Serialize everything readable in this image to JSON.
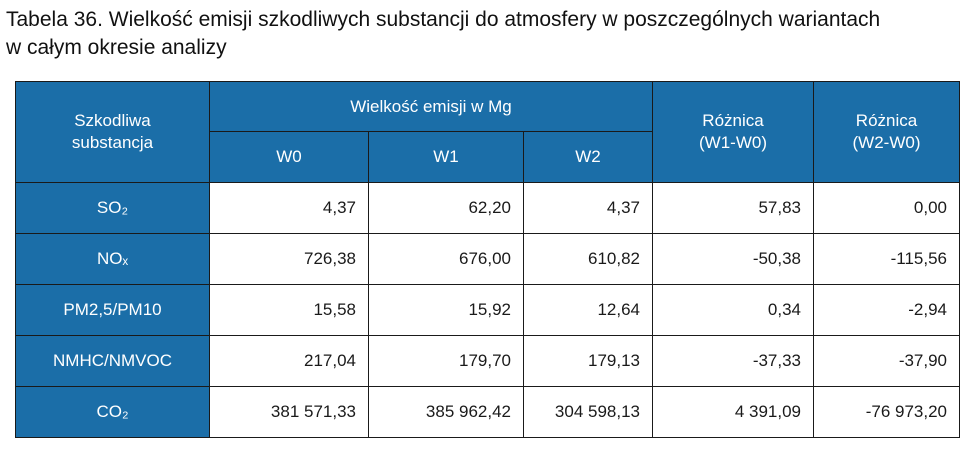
{
  "caption": {
    "line1": "Tabela 36. Wielkość emisji szkodliwych substancji do atmosfery w poszczególnych wariantach",
    "line2": "w całym okresie analizy"
  },
  "table": {
    "header": {
      "substance_line1": "Szkodliwa",
      "substance_line2": "substancja",
      "emission_group": "Wielkość emisji w Mg",
      "w0": "W0",
      "w1": "W1",
      "w2": "W2",
      "diff1_line1": "Różnica",
      "diff1_line2": "(W1-W0)",
      "diff2_line1": "Różnica",
      "diff2_line2": "(W2-W0)"
    },
    "rows": [
      {
        "substance": "SO₂",
        "w0": "4,37",
        "w1": "62,20",
        "w2": "4,37",
        "diff1": "57,83",
        "diff2": "0,00"
      },
      {
        "substance": "NOₓ",
        "w0": "726,38",
        "w1": "676,00",
        "w2": "610,82",
        "diff1": "-50,38",
        "diff2": "-115,56"
      },
      {
        "substance": "PM2,5/PM10",
        "w0": "15,58",
        "w1": "15,92",
        "w2": "12,64",
        "diff1": "0,34",
        "diff2": "-2,94"
      },
      {
        "substance": "NMHC/NMVOC",
        "w0": "217,04",
        "w1": "179,70",
        "w2": "179,13",
        "diff1": "-37,33",
        "diff2": "-37,90"
      },
      {
        "substance": "CO₂",
        "w0": "381 571,33",
        "w1": "385 962,42",
        "w2": "304 598,13",
        "diff1": "4 391,09",
        "diff2": "-76 973,20"
      }
    ]
  },
  "colors": {
    "header_bg": "#1b6ea8",
    "header_text": "#ffffff",
    "border": "#1a1a1a"
  }
}
